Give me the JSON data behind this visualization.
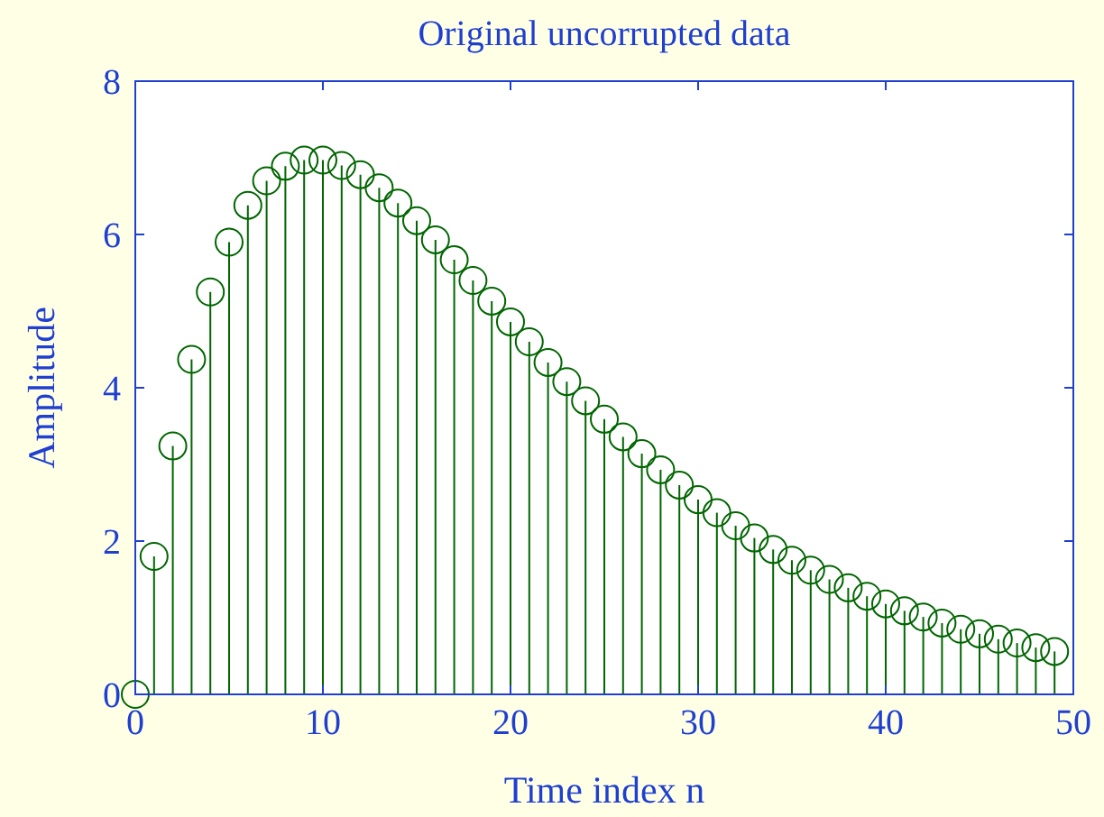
{
  "chart_data": {
    "type": "lollipop",
    "title": "Original uncorrupted data",
    "xlabel": "Time index n",
    "ylabel": "Amplitude",
    "x": [
      0,
      1,
      2,
      3,
      4,
      5,
      6,
      7,
      8,
      9,
      10,
      11,
      12,
      13,
      14,
      15,
      16,
      17,
      18,
      19,
      20,
      21,
      22,
      23,
      24,
      25,
      26,
      27,
      28,
      29,
      30,
      31,
      32,
      33,
      34,
      35,
      36,
      37,
      38,
      39,
      40,
      41,
      42,
      43,
      44,
      45,
      46,
      47,
      48,
      49
    ],
    "series": [
      {
        "color": "#006600",
        "values": [
          0,
          1.8,
          3.24,
          4.37,
          5.25,
          5.9,
          6.38,
          6.7,
          6.89,
          6.97,
          6.97,
          6.9,
          6.78,
          6.61,
          6.41,
          6.18,
          5.93,
          5.67,
          5.4,
          5.13,
          4.86,
          4.6,
          4.33,
          4.08,
          3.83,
          3.59,
          3.36,
          3.14,
          2.93,
          2.73,
          2.54,
          2.37,
          2.2,
          2.04,
          1.89,
          1.75,
          1.62,
          1.5,
          1.39,
          1.28,
          1.18,
          1.09,
          1.01,
          0.93,
          0.85,
          0.79,
          0.72,
          0.67,
          0.61,
          0.56
        ]
      }
    ],
    "xlim": [
      0,
      50
    ],
    "xticks": [
      0,
      10,
      20,
      30,
      40,
      50
    ],
    "ylim": [
      0,
      8
    ],
    "yticks": [
      0,
      2,
      4,
      6,
      8
    ],
    "marker": "circle",
    "grid": false
  }
}
